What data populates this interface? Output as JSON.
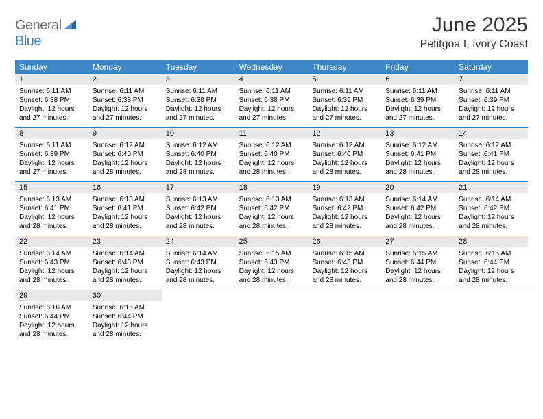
{
  "logo": {
    "part1": "General",
    "part2": "Blue"
  },
  "title": "June 2025",
  "subtitle": "Petitgoa I, Ivory Coast",
  "colors": {
    "header_bg": "#3d87c7",
    "header_text": "#ffffff",
    "week_border": "#3d7db8",
    "daynum_bg": "#e8e8e8",
    "logo_gray": "#6a6a6a",
    "logo_blue": "#3d7db8",
    "page_bg": "#ffffff"
  },
  "weekdays": [
    "Sunday",
    "Monday",
    "Tuesday",
    "Wednesday",
    "Thursday",
    "Friday",
    "Saturday"
  ],
  "weeks": [
    [
      {
        "n": "1",
        "sr": "Sunrise: 6:11 AM",
        "ss": "Sunset: 6:38 PM",
        "d1": "Daylight: 12 hours",
        "d2": "and 27 minutes."
      },
      {
        "n": "2",
        "sr": "Sunrise: 6:11 AM",
        "ss": "Sunset: 6:38 PM",
        "d1": "Daylight: 12 hours",
        "d2": "and 27 minutes."
      },
      {
        "n": "3",
        "sr": "Sunrise: 6:11 AM",
        "ss": "Sunset: 6:38 PM",
        "d1": "Daylight: 12 hours",
        "d2": "and 27 minutes."
      },
      {
        "n": "4",
        "sr": "Sunrise: 6:11 AM",
        "ss": "Sunset: 6:38 PM",
        "d1": "Daylight: 12 hours",
        "d2": "and 27 minutes."
      },
      {
        "n": "5",
        "sr": "Sunrise: 6:11 AM",
        "ss": "Sunset: 6:39 PM",
        "d1": "Daylight: 12 hours",
        "d2": "and 27 minutes."
      },
      {
        "n": "6",
        "sr": "Sunrise: 6:11 AM",
        "ss": "Sunset: 6:39 PM",
        "d1": "Daylight: 12 hours",
        "d2": "and 27 minutes."
      },
      {
        "n": "7",
        "sr": "Sunrise: 6:11 AM",
        "ss": "Sunset: 6:39 PM",
        "d1": "Daylight: 12 hours",
        "d2": "and 27 minutes."
      }
    ],
    [
      {
        "n": "8",
        "sr": "Sunrise: 6:11 AM",
        "ss": "Sunset: 6:39 PM",
        "d1": "Daylight: 12 hours",
        "d2": "and 27 minutes."
      },
      {
        "n": "9",
        "sr": "Sunrise: 6:12 AM",
        "ss": "Sunset: 6:40 PM",
        "d1": "Daylight: 12 hours",
        "d2": "and 28 minutes."
      },
      {
        "n": "10",
        "sr": "Sunrise: 6:12 AM",
        "ss": "Sunset: 6:40 PM",
        "d1": "Daylight: 12 hours",
        "d2": "and 28 minutes."
      },
      {
        "n": "11",
        "sr": "Sunrise: 6:12 AM",
        "ss": "Sunset: 6:40 PM",
        "d1": "Daylight: 12 hours",
        "d2": "and 28 minutes."
      },
      {
        "n": "12",
        "sr": "Sunrise: 6:12 AM",
        "ss": "Sunset: 6:40 PM",
        "d1": "Daylight: 12 hours",
        "d2": "and 28 minutes."
      },
      {
        "n": "13",
        "sr": "Sunrise: 6:12 AM",
        "ss": "Sunset: 6:41 PM",
        "d1": "Daylight: 12 hours",
        "d2": "and 28 minutes."
      },
      {
        "n": "14",
        "sr": "Sunrise: 6:12 AM",
        "ss": "Sunset: 6:41 PM",
        "d1": "Daylight: 12 hours",
        "d2": "and 28 minutes."
      }
    ],
    [
      {
        "n": "15",
        "sr": "Sunrise: 6:13 AM",
        "ss": "Sunset: 6:41 PM",
        "d1": "Daylight: 12 hours",
        "d2": "and 28 minutes."
      },
      {
        "n": "16",
        "sr": "Sunrise: 6:13 AM",
        "ss": "Sunset: 6:41 PM",
        "d1": "Daylight: 12 hours",
        "d2": "and 28 minutes."
      },
      {
        "n": "17",
        "sr": "Sunrise: 6:13 AM",
        "ss": "Sunset: 6:42 PM",
        "d1": "Daylight: 12 hours",
        "d2": "and 28 minutes."
      },
      {
        "n": "18",
        "sr": "Sunrise: 6:13 AM",
        "ss": "Sunset: 6:42 PM",
        "d1": "Daylight: 12 hours",
        "d2": "and 28 minutes."
      },
      {
        "n": "19",
        "sr": "Sunrise: 6:13 AM",
        "ss": "Sunset: 6:42 PM",
        "d1": "Daylight: 12 hours",
        "d2": "and 28 minutes."
      },
      {
        "n": "20",
        "sr": "Sunrise: 6:14 AM",
        "ss": "Sunset: 6:42 PM",
        "d1": "Daylight: 12 hours",
        "d2": "and 28 minutes."
      },
      {
        "n": "21",
        "sr": "Sunrise: 6:14 AM",
        "ss": "Sunset: 6:42 PM",
        "d1": "Daylight: 12 hours",
        "d2": "and 28 minutes."
      }
    ],
    [
      {
        "n": "22",
        "sr": "Sunrise: 6:14 AM",
        "ss": "Sunset: 6:43 PM",
        "d1": "Daylight: 12 hours",
        "d2": "and 28 minutes."
      },
      {
        "n": "23",
        "sr": "Sunrise: 6:14 AM",
        "ss": "Sunset: 6:43 PM",
        "d1": "Daylight: 12 hours",
        "d2": "and 28 minutes."
      },
      {
        "n": "24",
        "sr": "Sunrise: 6:14 AM",
        "ss": "Sunset: 6:43 PM",
        "d1": "Daylight: 12 hours",
        "d2": "and 28 minutes."
      },
      {
        "n": "25",
        "sr": "Sunrise: 6:15 AM",
        "ss": "Sunset: 6:43 PM",
        "d1": "Daylight: 12 hours",
        "d2": "and 28 minutes."
      },
      {
        "n": "26",
        "sr": "Sunrise: 6:15 AM",
        "ss": "Sunset: 6:43 PM",
        "d1": "Daylight: 12 hours",
        "d2": "and 28 minutes."
      },
      {
        "n": "27",
        "sr": "Sunrise: 6:15 AM",
        "ss": "Sunset: 6:44 PM",
        "d1": "Daylight: 12 hours",
        "d2": "and 28 minutes."
      },
      {
        "n": "28",
        "sr": "Sunrise: 6:15 AM",
        "ss": "Sunset: 6:44 PM",
        "d1": "Daylight: 12 hours",
        "d2": "and 28 minutes."
      }
    ],
    [
      {
        "n": "29",
        "sr": "Sunrise: 6:16 AM",
        "ss": "Sunset: 6:44 PM",
        "d1": "Daylight: 12 hours",
        "d2": "and 28 minutes."
      },
      {
        "n": "30",
        "sr": "Sunrise: 6:16 AM",
        "ss": "Sunset: 6:44 PM",
        "d1": "Daylight: 12 hours",
        "d2": "and 28 minutes."
      },
      {
        "empty": true
      },
      {
        "empty": true
      },
      {
        "empty": true
      },
      {
        "empty": true
      },
      {
        "empty": true
      }
    ]
  ]
}
